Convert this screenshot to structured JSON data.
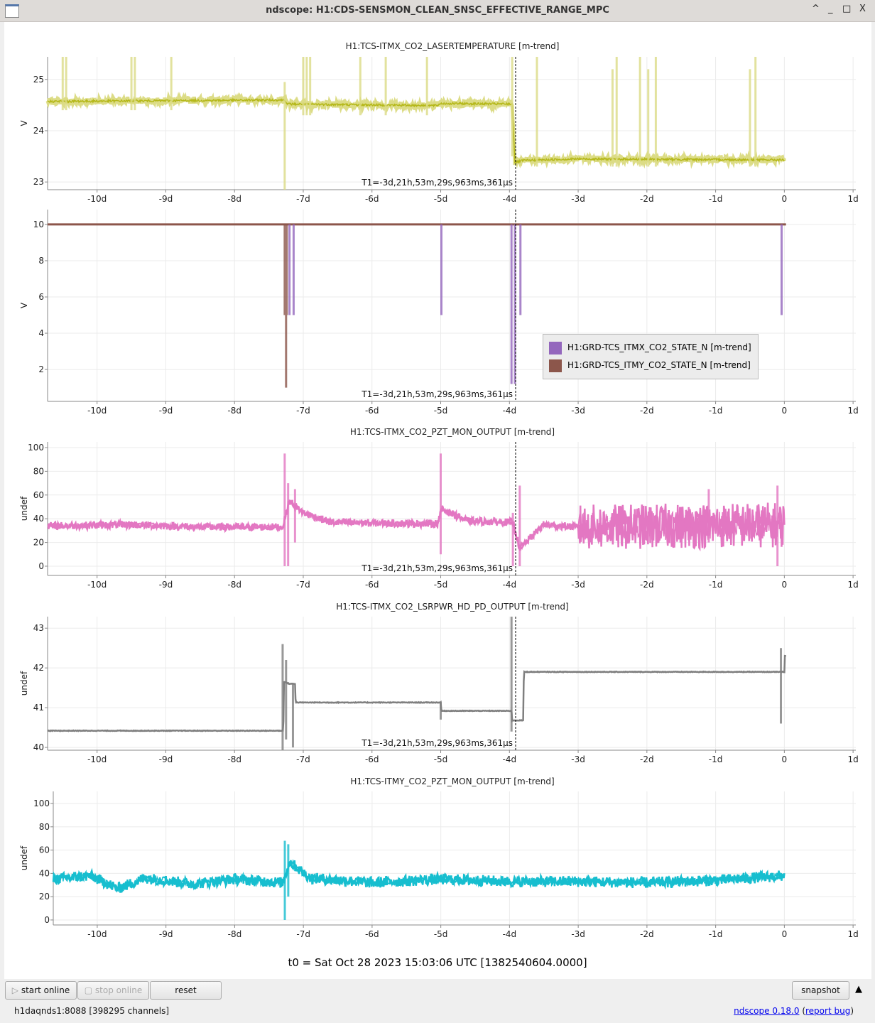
{
  "window": {
    "title": "ndscope: H1:CDS-SENSMON_CLEAN_SNSC_EFFECTIVE_RANGE_MPC",
    "buttons": [
      "^",
      "_",
      "□",
      "X"
    ]
  },
  "cursor_label": "T1=-3d,21h,53m,29s,963ms,361µs",
  "t0_label": "t0 = Sat Oct 28 2023 15:03:06 UTC [1382540604.0000]",
  "toolbar": {
    "start": "start online",
    "stop": "stop online",
    "reset": "reset",
    "snapshot": "snapshot",
    "collapse": "▲"
  },
  "status": {
    "server": "h1daqnds1:8088  [398295 channels]",
    "version_link": "ndscope 0.18.0",
    "open": " (",
    "report_link": "report bug",
    "close": ")"
  },
  "legend": [
    {
      "label": "H1:GRD-TCS_ITMX_CO2_STATE_N [m-trend]",
      "color": "#9467bd"
    },
    {
      "label": "H1:GRD-TCS_ITMY_CO2_STATE_N [m-trend]",
      "color": "#8c564b"
    }
  ],
  "chart_data": [
    {
      "type": "line",
      "title": "H1:TCS-ITMX_CO2_LASERTEMPERATURE [m-trend]",
      "ylabel": "V",
      "xlim": [
        -10.72,
        1.04
      ],
      "ylim": [
        22.85,
        25.44
      ],
      "xticks": [
        "-10d",
        "-9d",
        "-8d",
        "-7d",
        "-6d",
        "-5d",
        "-4d",
        "-3d",
        "-2d",
        "-1d",
        "0",
        "1d"
      ],
      "xtick_values": [
        -10,
        -9,
        -8,
        -7,
        -6,
        -5,
        -4,
        -3,
        -2,
        -1,
        0,
        1
      ],
      "yticks": [
        23,
        24,
        25
      ],
      "cursor": -3.91,
      "series": [
        {
          "name": "H1:TCS-ITMX_CO2_LASERTEMPERATURE",
          "color": "#b5b81a",
          "band": "#dcdc86",
          "noise": 0.02,
          "points": [
            [
              -10.72,
              24.57
            ],
            [
              -7.26,
              24.6
            ],
            [
              -7.24,
              24.52
            ],
            [
              -5.05,
              24.49
            ],
            [
              -5.0,
              24.53
            ],
            [
              -3.96,
              24.52
            ],
            [
              -3.92,
              23.38
            ],
            [
              -3.8,
              23.42
            ],
            [
              -3,
              23.45
            ],
            [
              0,
              23.43
            ]
          ],
          "spikes": [
            [
              -10.5,
              24.4,
              25.44
            ],
            [
              -10.45,
              24.4,
              25.44
            ],
            [
              -9.5,
              24.4,
              25.44
            ],
            [
              -9.45,
              24.4,
              25.44
            ],
            [
              -8.92,
              24.4,
              25.44
            ],
            [
              -7.27,
              22.85,
              24.95
            ],
            [
              -7.0,
              24.3,
              25.44
            ],
            [
              -6.95,
              24.3,
              25.44
            ],
            [
              -6.9,
              24.3,
              25.44
            ],
            [
              -6.17,
              24.3,
              25.44
            ],
            [
              -5.8,
              24.3,
              25.44
            ],
            [
              -5.2,
              24.3,
              25.44
            ],
            [
              -3.96,
              23.5,
              25.44
            ],
            [
              -3.6,
              23.3,
              25.44
            ],
            [
              -2.5,
              23.3,
              25.2
            ],
            [
              -2.44,
              23.3,
              25.44
            ],
            [
              -2.1,
              23.3,
              25.44
            ],
            [
              -1.98,
              23.3,
              25.2
            ],
            [
              -1.87,
              23.3,
              25.44
            ],
            [
              -0.5,
              23.3,
              25.2
            ],
            [
              -0.42,
              23.3,
              25.44
            ]
          ]
        }
      ]
    },
    {
      "type": "line",
      "title": "",
      "ylabel": "V",
      "xlim": [
        -10.72,
        1.04
      ],
      "ylim": [
        0.24,
        10.82
      ],
      "xticks": [
        "-10d",
        "-9d",
        "-8d",
        "-7d",
        "-6d",
        "-5d",
        "-4d",
        "-3d",
        "-2d",
        "-1d",
        "0",
        "1d"
      ],
      "xtick_values": [
        -10,
        -9,
        -8,
        -7,
        -6,
        -5,
        -4,
        -3,
        -2,
        -1,
        0,
        1
      ],
      "yticks": [
        2,
        4,
        6,
        8,
        10
      ],
      "cursor": -3.91,
      "series": [
        {
          "name": "H1:GRD-TCS_ITMY_CO2_STATE_N [m-trend]",
          "color": "#8c564b",
          "noise": 0,
          "points": [
            [
              -10.72,
              10
            ],
            [
              0.03,
              10
            ]
          ],
          "spikes": [
            [
              -7.27,
              5,
              10
            ],
            [
              -7.24,
              5,
              10
            ],
            [
              -7.25,
              1,
              5
            ]
          ]
        },
        {
          "name": "H1:GRD-TCS_ITMX_CO2_STATE_N [m-trend]",
          "color": "#9467bd",
          "noise": 0,
          "points": [],
          "spikes": [
            [
              -7.2,
              5,
              10
            ],
            [
              -7.14,
              5,
              10
            ],
            [
              -4.99,
              5,
              10
            ],
            [
              -3.97,
              1.2,
              10
            ],
            [
              -3.92,
              1.2,
              10
            ],
            [
              -3.84,
              5,
              10
            ],
            [
              -0.04,
              5,
              10
            ]
          ]
        }
      ]
    },
    {
      "type": "line",
      "title": "H1:TCS-ITMX_CO2_PZT_MON_OUTPUT [m-trend]",
      "ylabel": "undef",
      "xlim": [
        -10.72,
        1.04
      ],
      "ylim": [
        -7.8,
        104.8
      ],
      "xticks": [
        "-10d",
        "-9d",
        "-8d",
        "-7d",
        "-6d",
        "-5d",
        "-4d",
        "-3d",
        "-2d",
        "-1d",
        "0",
        "1d"
      ],
      "xtick_values": [
        -10,
        -9,
        -8,
        -7,
        -6,
        -5,
        -4,
        -3,
        -2,
        -1,
        0,
        1
      ],
      "yticks": [
        0,
        20,
        40,
        60,
        80,
        100
      ],
      "cursor": -3.91,
      "series": [
        {
          "name": "H1:TCS-ITMX_CO2_PZT_MON_OUTPUT",
          "color": "#e377c2",
          "noise": 2,
          "points": [
            [
              -10.72,
              34
            ],
            [
              -9.5,
              35
            ],
            [
              -8.5,
              33
            ],
            [
              -7.3,
              33
            ],
            [
              -7.2,
              55
            ],
            [
              -7.0,
              45
            ],
            [
              -6.6,
              37
            ],
            [
              -5.5,
              36
            ],
            [
              -5.05,
              36
            ],
            [
              -4.98,
              48
            ],
            [
              -4.6,
              38
            ],
            [
              -3.95,
              37
            ],
            [
              -3.85,
              15
            ],
            [
              -3.5,
              35
            ],
            [
              -3.0,
              33
            ],
            [
              -2.5,
              33
            ],
            [
              0,
              35
            ]
          ],
          "noise_ranges": [
            [
              -3.0,
              0.05,
              6
            ]
          ],
          "spikes": [
            [
              -7.27,
              0,
              95
            ],
            [
              -7.22,
              0,
              70
            ],
            [
              -7.12,
              20,
              65
            ],
            [
              -5.0,
              10,
              95
            ],
            [
              -3.85,
              0,
              68
            ],
            [
              -3.95,
              0,
              45
            ],
            [
              -1.1,
              20,
              65
            ],
            [
              -0.1,
              0,
              68
            ]
          ]
        }
      ]
    },
    {
      "type": "line",
      "title": "H1:TCS-ITMX_CO2_LSRPWR_HD_PD_OUTPUT [m-trend]",
      "ylabel": "undef",
      "xlim": [
        -10.72,
        1.04
      ],
      "ylim": [
        39.93,
        43.29
      ],
      "xticks": [
        "-10d",
        "-9d",
        "-8d",
        "-7d",
        "-6d",
        "-5d",
        "-4d",
        "-3d",
        "-2d",
        "-1d",
        "0",
        "1d"
      ],
      "xtick_values": [
        -10,
        -9,
        -8,
        -7,
        -6,
        -5,
        -4,
        -3,
        -2,
        -1,
        0,
        1
      ],
      "yticks": [
        40,
        41,
        42,
        43
      ],
      "cursor": -3.91,
      "series": [
        {
          "name": "H1:TCS-ITMX_CO2_LSRPWR_HD_PD_OUTPUT",
          "color": "#7f7f7f",
          "noise": 0.005,
          "points": [
            [
              -10.72,
              40.42
            ],
            [
              -7.29,
              40.42
            ],
            [
              -7.28,
              41.65
            ],
            [
              -7.2,
              41.6
            ],
            [
              -7.12,
              41.6
            ],
            [
              -7.11,
              41.13
            ],
            [
              -5.0,
              41.13
            ],
            [
              -4.99,
              40.92
            ],
            [
              -3.97,
              40.92
            ],
            [
              -3.96,
              40.68
            ],
            [
              -3.8,
              40.68
            ],
            [
              -3.79,
              41.9
            ],
            [
              0,
              41.9
            ],
            [
              0.0,
              42.3
            ],
            [
              0.03,
              42.3
            ]
          ],
          "spikes": [
            [
              -7.3,
              39.93,
              42.6
            ],
            [
              -7.25,
              40.2,
              42.2
            ],
            [
              -7.15,
              40,
              41.6
            ],
            [
              -5.0,
              40.7,
              41.15
            ],
            [
              -3.97,
              40.4,
              43.29
            ],
            [
              -0.05,
              40.6,
              42.5
            ]
          ]
        }
      ]
    },
    {
      "type": "line",
      "title": "H1:TCS-ITMY_CO2_PZT_MON_OUTPUT [m-trend]",
      "ylabel": "undef",
      "xlim": [
        -10.64,
        1.04
      ],
      "ylim": [
        -4.3,
        110.4
      ],
      "xticks": [
        "-10d",
        "-9d",
        "-8d",
        "-7d",
        "-6d",
        "-5d",
        "-4d",
        "-3d",
        "-2d",
        "-1d",
        "0",
        "1d"
      ],
      "xtick_values": [
        -10,
        -9,
        -8,
        -7,
        -6,
        -5,
        -4,
        -3,
        -2,
        -1,
        0,
        1
      ],
      "yticks": [
        0,
        20,
        40,
        60,
        80,
        100
      ],
      "cursor": null,
      "series": [
        {
          "name": "H1:TCS-ITMY_CO2_PZT_MON_OUTPUT",
          "color": "#17becf",
          "noise": 3,
          "points": [
            [
              -10.64,
              35
            ],
            [
              -10.1,
              38
            ],
            [
              -9.7,
              27
            ],
            [
              -9.3,
              36
            ],
            [
              -8.6,
              31
            ],
            [
              -8.0,
              35
            ],
            [
              -7.3,
              32
            ],
            [
              -7.2,
              50
            ],
            [
              -6.9,
              36
            ],
            [
              -6.0,
              32
            ],
            [
              -5.0,
              35
            ],
            [
              -4.0,
              33
            ],
            [
              -3.0,
              33
            ],
            [
              -2.0,
              32
            ],
            [
              -1.0,
              34
            ],
            [
              0,
              38
            ]
          ],
          "spikes": [
            [
              -7.27,
              0,
              68
            ],
            [
              -7.22,
              20,
              65
            ]
          ]
        }
      ]
    }
  ]
}
